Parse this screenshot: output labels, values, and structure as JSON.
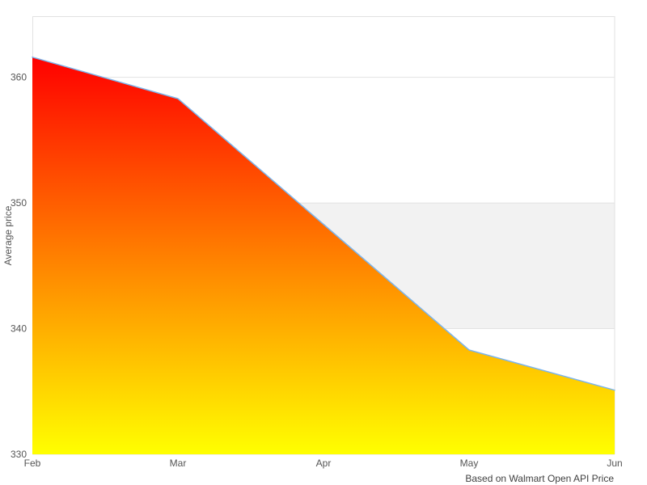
{
  "figure": {
    "background": "#ffffff",
    "y_axis": {
      "title": "Average price"
    },
    "caption": "Based on Walmart Open API Price"
  },
  "chart_data": {
    "type": "area",
    "categories": [
      "Feb",
      "Mar",
      "Apr",
      "May",
      "Jun"
    ],
    "values": [
      361.6,
      358.3,
      348.3,
      338.3,
      335.1
    ],
    "title": "",
    "xlabel": "",
    "ylabel": "Average price",
    "ylim": [
      330,
      364.8
    ],
    "yticks": [
      330,
      340,
      350,
      360
    ],
    "grid": true,
    "legend_position": "none",
    "caption": "Based on Walmart Open API Price",
    "plot_band": {
      "from": 340,
      "to": 350,
      "color": "#f2f2f2"
    },
    "line_color": "#7cb5ec",
    "line_width": 1.5,
    "fill_gradient": {
      "top": "#ff0000",
      "bottom": "#ffff00"
    },
    "grid_color": "#e2e2e2",
    "border_color": "#e2e2e2",
    "tick_text_color": "#555555",
    "caption_text_color": "#404040"
  }
}
